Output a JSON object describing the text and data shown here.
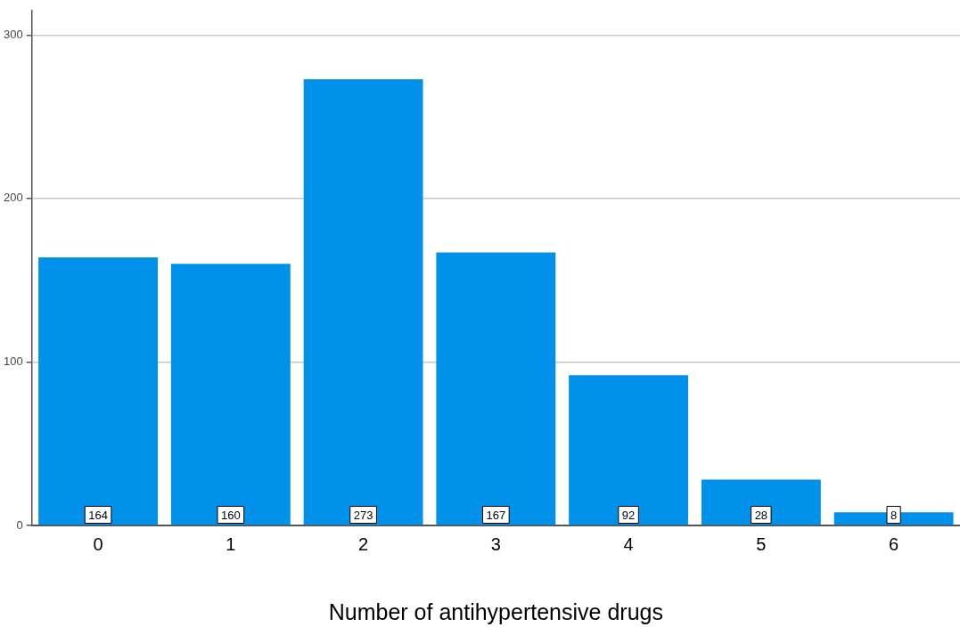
{
  "chart_data": {
    "type": "bar",
    "xlabel": "Number of antihypertensive drugs",
    "categories": [
      "0",
      "1",
      "2",
      "3",
      "4",
      "5",
      "6"
    ],
    "values": [
      164,
      160,
      273,
      167,
      92,
      28,
      8
    ],
    "color": "#0091ea",
    "ylim": [
      0,
      315
    ],
    "yticks": [
      0,
      100,
      200,
      300
    ],
    "grid": "y",
    "data_labels": true
  }
}
